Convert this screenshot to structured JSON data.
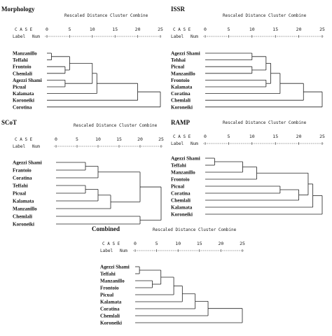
{
  "header": {
    "case_label": "C A S E",
    "label_label": "Label",
    "num_label": "Num",
    "axis_title": "Rescaled Distance Cluster Combine",
    "ticks": [
      "0",
      "5",
      "10",
      "15",
      "20",
      "25"
    ]
  },
  "dendrograms": [
    {
      "id": "morphology",
      "title": "Morphology",
      "leaves": [
        "Manzanillo",
        "Teffahi",
        "Frontoio",
        "Chemlali",
        "Agezzi Shami",
        "Picual",
        "Kalamata",
        "Koroneiki",
        "Corotina"
      ],
      "merges": [
        {
          "a": 0,
          "b": 1,
          "height": 1
        },
        {
          "a": 2,
          "b": 3,
          "height": 4
        },
        {
          "a": 4,
          "b": 5,
          "height": 4
        },
        {
          "a": "m0",
          "b": "m1",
          "height": 5
        },
        {
          "a": "m3",
          "b": "m2",
          "height": 10
        },
        {
          "a": "m4",
          "b": 6,
          "height": 11
        },
        {
          "a": "m5",
          "b": 7,
          "height": 20
        },
        {
          "a": "m6",
          "b": 8,
          "height": 25
        }
      ]
    },
    {
      "id": "issr",
      "title": "ISSR",
      "leaves": [
        "Agezzi Shami",
        "Tehhai",
        "Picual",
        "Manzanillo",
        "Frontoio",
        "Kalamata",
        "Coratina",
        "Chemlali",
        "Koroneiki"
      ],
      "merges": [
        {
          "a": 0,
          "b": 1,
          "height": 10
        },
        {
          "a": 2,
          "b": 3,
          "height": 10
        },
        {
          "a": "m0",
          "b": "m1",
          "height": 13
        },
        {
          "a": 4,
          "b": 5,
          "height": 13
        },
        {
          "a": "m2",
          "b": "m3",
          "height": 14
        },
        {
          "a": "m4",
          "b": 6,
          "height": 16
        },
        {
          "a": "m5",
          "b": 7,
          "height": 21
        },
        {
          "a": "m6",
          "b": 8,
          "height": 25
        }
      ]
    },
    {
      "id": "scot",
      "title": "SCoT",
      "leaves": [
        "Agezzi Shami",
        "Frantoio",
        "Coratina",
        "Teffahi",
        "Picual",
        "Kalamata",
        "Manzanillo",
        "Chemlali",
        "Koroneiki"
      ],
      "merges": [
        {
          "a": 0,
          "b": 1,
          "height": 7
        },
        {
          "a": 3,
          "b": 4,
          "height": 7
        },
        {
          "a": "m0",
          "b": 2,
          "height": 10
        },
        {
          "a": "m1",
          "b": 5,
          "height": 10
        },
        {
          "a": "m3",
          "b": 6,
          "height": 13
        },
        {
          "a": "m2",
          "b": "m4",
          "height": 20
        },
        {
          "a": 7,
          "b": 8,
          "height": 20
        },
        {
          "a": "m5",
          "b": "m6",
          "height": 25
        }
      ]
    },
    {
      "id": "ramp",
      "title": "RAMP",
      "leaves": [
        "Agezzi Shami",
        "Teffahi",
        "Manzanillo",
        "Frontoio",
        "Picual",
        "Coratina",
        "Chemlali",
        "Kalamata",
        "Koroneiki"
      ],
      "merges": [
        {
          "a": 0,
          "b": 1,
          "height": 2
        },
        {
          "a": "m0",
          "b": 2,
          "height": 8
        },
        {
          "a": "m1",
          "b": 3,
          "height": 11
        },
        {
          "a": 4,
          "b": 5,
          "height": 16
        },
        {
          "a": "m3",
          "b": 6,
          "height": 20
        },
        {
          "a": "m2",
          "b": "m4",
          "height": 22
        },
        {
          "a": "m5",
          "b": 7,
          "height": 23
        },
        {
          "a": "m6",
          "b": 8,
          "height": 25
        }
      ]
    },
    {
      "id": "combined",
      "title": "Combined",
      "leaves": [
        "Agezzi Shami",
        "Teffahi",
        "Manzanillo",
        "Frontoio",
        "Picual",
        "Kalamata",
        "Coratina",
        "Chemlali",
        "Koroneiki"
      ],
      "merges": [
        {
          "a": 0,
          "b": 1,
          "height": 1
        },
        {
          "a": 2,
          "b": 3,
          "height": 4
        },
        {
          "a": "m0",
          "b": "m1",
          "height": 6
        },
        {
          "a": "m2",
          "b": 4,
          "height": 9
        },
        {
          "a": "m3",
          "b": 5,
          "height": 11
        },
        {
          "a": "m4",
          "b": 6,
          "height": 14
        },
        {
          "a": "m5",
          "b": 7,
          "height": 17
        },
        {
          "a": "m6",
          "b": 8,
          "height": 25
        }
      ]
    }
  ]
}
